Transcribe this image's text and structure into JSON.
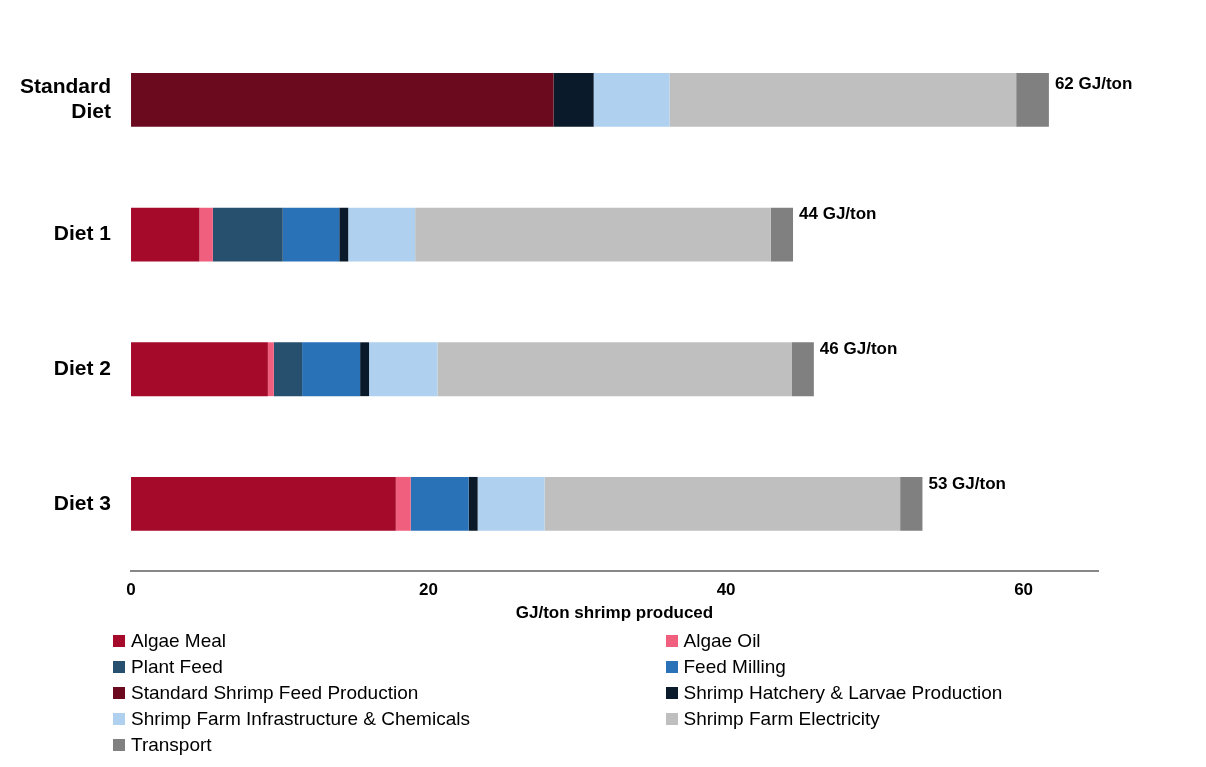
{
  "chart_data": {
    "type": "bar",
    "orientation": "horizontal",
    "stacked": true,
    "xlabel": "GJ/ton shrimp produced",
    "categories": [
      "Standard Diet",
      "Diet 1",
      "Diet 2",
      "Diet 3"
    ],
    "series": [
      {
        "name": "Algae Meal",
        "color": "#a50a2a",
        "values": [
          0,
          4.6,
          9.2,
          17.8
        ]
      },
      {
        "name": "Algae Oil",
        "color": "#f0607e",
        "values": [
          0,
          0.9,
          0.4,
          1.0
        ]
      },
      {
        "name": "Plant Feed",
        "color": "#27506f",
        "values": [
          0,
          4.7,
          1.9,
          0
        ]
      },
      {
        "name": "Feed Milling",
        "color": "#2a72b8",
        "values": [
          0,
          3.8,
          3.9,
          3.9
        ]
      },
      {
        "name": "Standard Shrimp Feed Production",
        "color": "#6b0a1e",
        "values": [
          28.4,
          0,
          0,
          0
        ]
      },
      {
        "name": "Shrimp Hatchery & Larvae Production",
        "color": "#0b1a2a",
        "values": [
          2.7,
          0.6,
          0.6,
          0.6
        ]
      },
      {
        "name": "Shrimp Farm Infrastructure & Chemicals",
        "color": "#afd0ee",
        "values": [
          5.1,
          4.5,
          4.6,
          4.5
        ]
      },
      {
        "name": "Shrimp Farm Electricity",
        "color": "#bfbfbf",
        "values": [
          23.3,
          23.9,
          23.8,
          23.9
        ]
      },
      {
        "name": "Transport",
        "color": "#808080",
        "values": [
          2.2,
          1.5,
          1.5,
          1.5
        ]
      }
    ],
    "totals": [
      "62 GJ/ton",
      "44 GJ/ton",
      "46 GJ/ton",
      "53 GJ/ton"
    ],
    "xlim": [
      0,
      65
    ],
    "xticks": [
      0,
      20,
      40,
      60
    ],
    "grid": false,
    "legend": "bottom"
  }
}
